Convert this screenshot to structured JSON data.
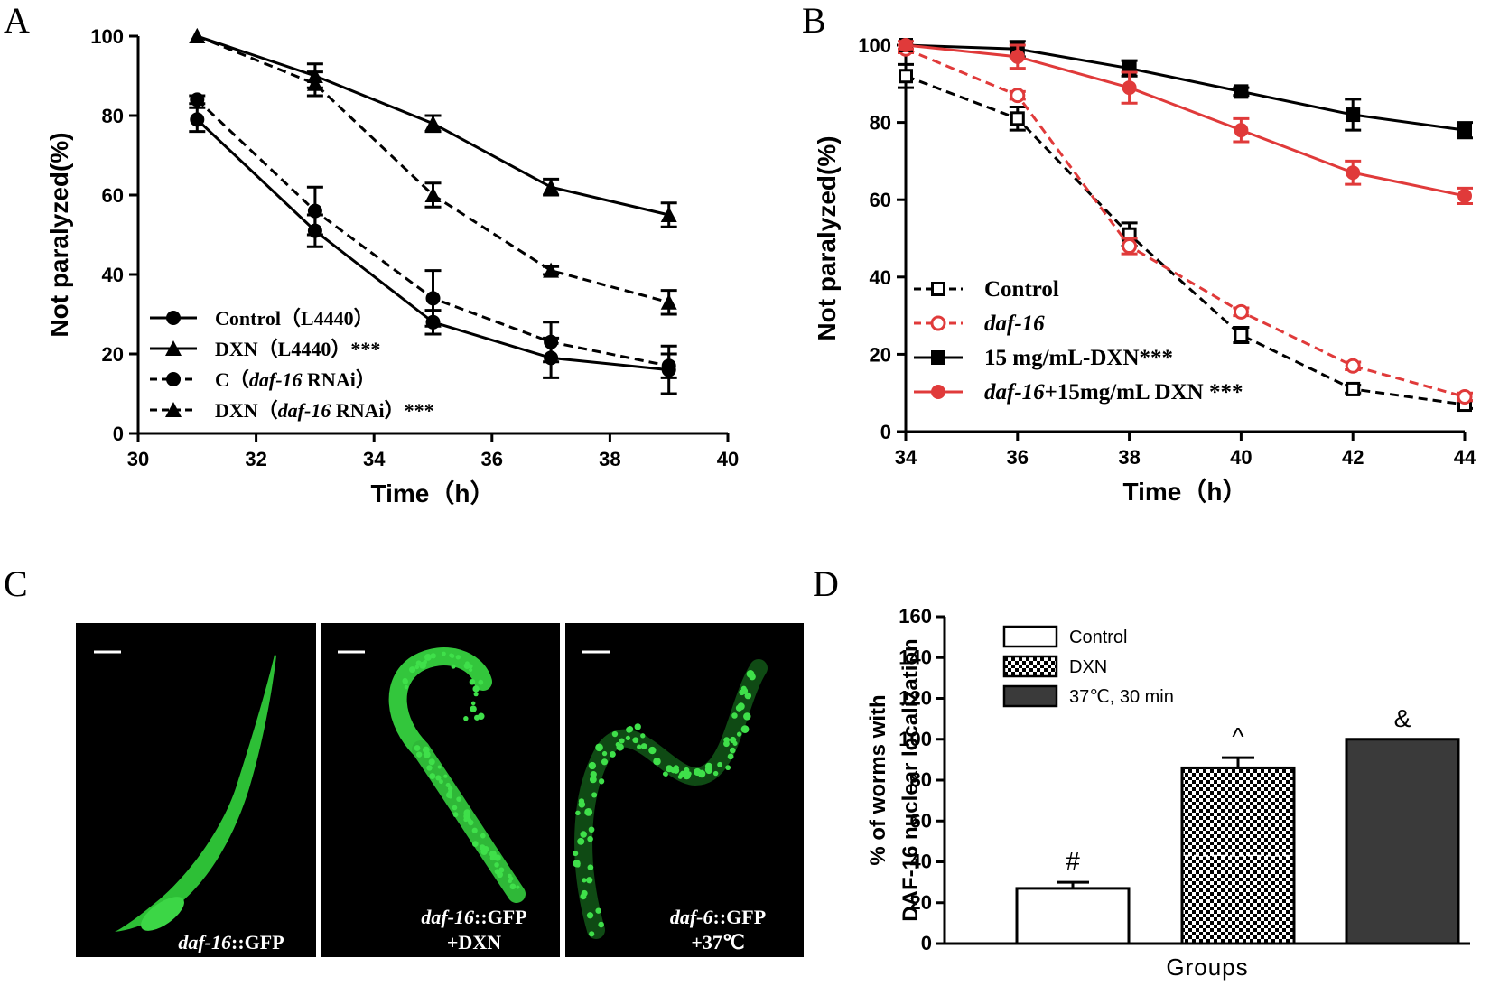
{
  "panels": {
    "A": "A",
    "B": "B",
    "C": "C",
    "D": "D"
  },
  "chart_data": [
    {
      "panel": "A",
      "type": "line",
      "xlabel": "Time（h）",
      "ylabel": "Not paralyzed(%)",
      "xlim": [
        30,
        40
      ],
      "ylim": [
        0,
        100
      ],
      "xticks": [
        "30",
        "32",
        "34",
        "36",
        "38",
        "40"
      ],
      "yticks": [
        "0",
        "20",
        "40",
        "60",
        "80",
        "100"
      ],
      "x": [
        31,
        33,
        35,
        37,
        39
      ],
      "legend_position": "bottom-left",
      "series": [
        {
          "name": "Control（L4440）",
          "marker": "circle",
          "dash": "solid",
          "values": [
            79,
            51,
            28,
            19,
            16
          ],
          "errors": [
            3,
            4,
            3,
            5,
            6
          ]
        },
        {
          "name": "DXN（L4440）***",
          "marker": "triangle",
          "dash": "solid",
          "values": [
            100,
            90,
            78,
            62,
            55
          ],
          "errors": [
            0,
            3,
            2,
            2,
            3
          ]
        },
        {
          "name": "C（daf-16 RNAi）",
          "marker": "hexagon",
          "dash": "dashed",
          "values": [
            84,
            56,
            34,
            23,
            17
          ],
          "errors": [
            1,
            6,
            7,
            5,
            3
          ]
        },
        {
          "name": "DXN（daf-16 RNAi）***",
          "marker": "triangle",
          "dash": "dashed",
          "values": [
            100,
            88,
            60,
            41,
            33
          ],
          "errors": [
            0,
            3,
            3,
            1,
            3
          ]
        }
      ],
      "legend": [
        {
          "parts": [
            {
              "t": "Control（L4440）",
              "i": false
            }
          ]
        },
        {
          "parts": [
            {
              "t": "DXN（L4440）***",
              "i": false
            }
          ]
        },
        {
          "parts": [
            {
              "t": "C（",
              "i": false
            },
            {
              "t": "daf-16",
              "i": true
            },
            {
              "t": " RNAi）",
              "i": false
            }
          ]
        },
        {
          "parts": [
            {
              "t": "DXN（",
              "i": false
            },
            {
              "t": "daf-16",
              "i": true
            },
            {
              "t": " RNAi）***",
              "i": false
            }
          ]
        }
      ]
    },
    {
      "panel": "B",
      "type": "line",
      "xlabel": "Time（h）",
      "ylabel": "Not paralyzed(%)",
      "xlim": [
        34,
        44
      ],
      "ylim": [
        0,
        100
      ],
      "xticks": [
        "34",
        "36",
        "38",
        "40",
        "42",
        "44"
      ],
      "yticks": [
        "0",
        "20",
        "40",
        "60",
        "80",
        "100"
      ],
      "x": [
        34,
        36,
        38,
        40,
        42,
        44
      ],
      "legend_position": "bottom-left",
      "series": [
        {
          "name": "Control",
          "marker": "open-square",
          "dash": "dashed",
          "color": "#000000",
          "values": [
            92,
            81,
            51,
            25,
            11,
            7
          ],
          "errors": [
            3,
            3,
            3,
            2,
            1,
            1
          ]
        },
        {
          "name": "daf-16",
          "marker": "open-circle",
          "dash": "dashed",
          "color": "#e03a3a",
          "values": [
            99,
            87,
            48,
            31,
            17,
            9
          ],
          "errors": [
            1,
            1,
            2,
            1,
            1,
            1
          ]
        },
        {
          "name": "15 mg/mL-DXN***",
          "marker": "square",
          "dash": "solid",
          "color": "#000000",
          "values": [
            100,
            99,
            94,
            88,
            82,
            78
          ],
          "errors": [
            0,
            2,
            2,
            1,
            4,
            2
          ]
        },
        {
          "name": "daf-16+15mg/mL DXN ***",
          "marker": "circle",
          "dash": "solid",
          "color": "#e03a3a",
          "values": [
            100,
            97,
            89,
            78,
            67,
            61
          ],
          "errors": [
            1,
            3,
            4,
            3,
            3,
            2
          ]
        }
      ],
      "legend": [
        {
          "parts": [
            {
              "t": "Control",
              "i": false
            }
          ]
        },
        {
          "parts": [
            {
              "t": "daf-16",
              "i": true
            }
          ]
        },
        {
          "parts": [
            {
              "t": "15 mg/mL-DXN***",
              "i": false
            }
          ]
        },
        {
          "parts": [
            {
              "t": "daf-16",
              "i": true
            },
            {
              "t": "+15mg/mL DXN ***",
              "i": false
            }
          ]
        }
      ]
    },
    {
      "panel": "D",
      "type": "bar",
      "xlabel": "Groups",
      "ylabel": "% of worms with DAF-16 nuclear localization",
      "ylabel_lines": [
        "% of worms with",
        "DAF-16 nuclear localization"
      ],
      "ylim": [
        0,
        160
      ],
      "yticks": [
        "0",
        "20",
        "40",
        "60",
        "80",
        "100",
        "120",
        "140",
        "160"
      ],
      "categories": [
        "Control",
        "DXN",
        "37℃, 30 min"
      ],
      "values": [
        27,
        86,
        100
      ],
      "errors": [
        3,
        5,
        0
      ],
      "annotations": [
        "#",
        "^",
        "&"
      ],
      "legend_position": "top-left"
    }
  ],
  "micrographs": [
    {
      "parts": [
        {
          "t": "daf-16",
          "i": true
        },
        {
          "t": "::GFP",
          "i": false
        }
      ],
      "line2": ""
    },
    {
      "parts": [
        {
          "t": "daf-16",
          "i": true
        },
        {
          "t": "::GFP",
          "i": false
        }
      ],
      "line2": "+DXN"
    },
    {
      "parts": [
        {
          "t": "daf-6",
          "i": true
        },
        {
          "t": "::GFP",
          "i": false
        }
      ],
      "line2": "+37℃"
    }
  ],
  "colors": {
    "red": "#e03a3a",
    "black": "#000000",
    "gfp": "#3fe04a",
    "dark_bar": "#3a3a3a"
  }
}
